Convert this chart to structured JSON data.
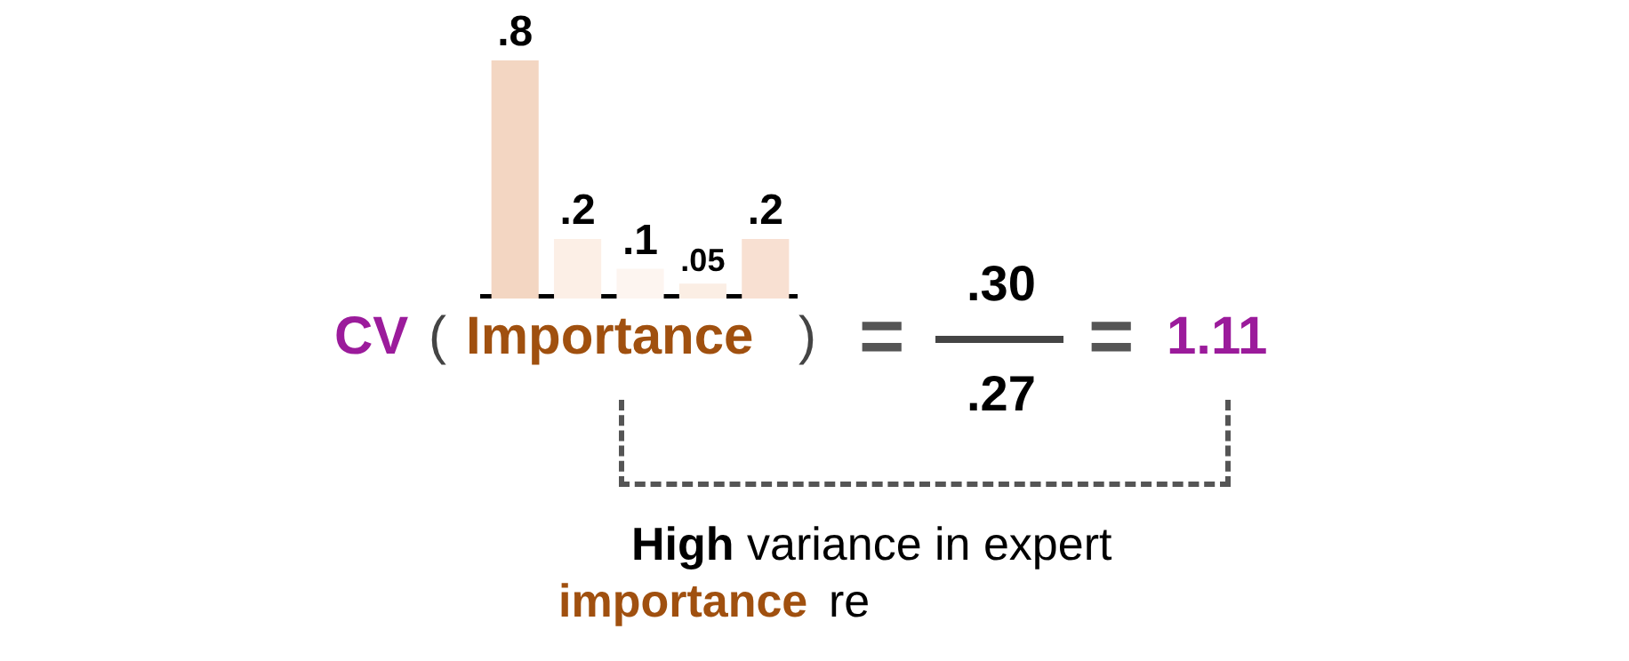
{
  "chart_data": {
    "type": "bar",
    "categories": [
      null,
      null,
      null,
      null,
      null
    ],
    "values": [
      0.8,
      0.2,
      0.1,
      0.05,
      0.2
    ],
    "colors": [
      "#f3d6c2",
      "#fcefe6",
      "#fdf5f0",
      "#fbeee4",
      "#f8e0d2"
    ],
    "value_labels": [
      ".8",
      ".2",
      ".1",
      ".05",
      ".2"
    ],
    "annotations": [
      "CV",
      "(",
      "Importance",
      ")",
      "=",
      ".30",
      ".27",
      "=",
      "1.11",
      "High",
      "variance in expert",
      "importance",
      "re"
    ]
  }
}
